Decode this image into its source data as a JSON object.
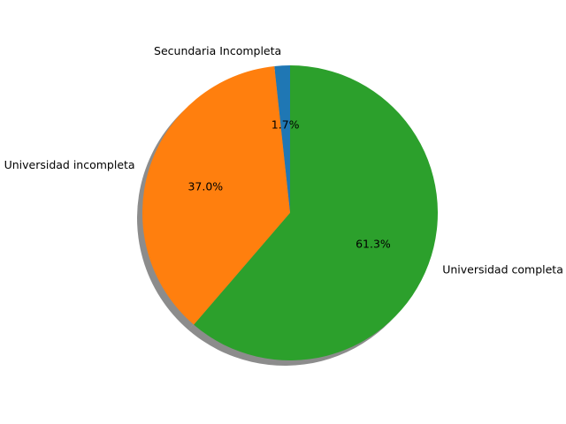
{
  "chart_data": {
    "type": "pie",
    "title": "",
    "slices": [
      {
        "label": "Secundaria Incompleta",
        "value": 1.7,
        "pct_label": "1.7%",
        "color": "#1f77b4"
      },
      {
        "label": "Universidad incompleta",
        "value": 37.0,
        "pct_label": "37.0%",
        "color": "#ff7f0e"
      },
      {
        "label": "Universidad completa",
        "value": 61.3,
        "pct_label": "61.3%",
        "color": "#2ca02c"
      }
    ],
    "start_angle_deg": 90,
    "direction": "counterclockwise",
    "shadow": true,
    "legend": "none"
  }
}
